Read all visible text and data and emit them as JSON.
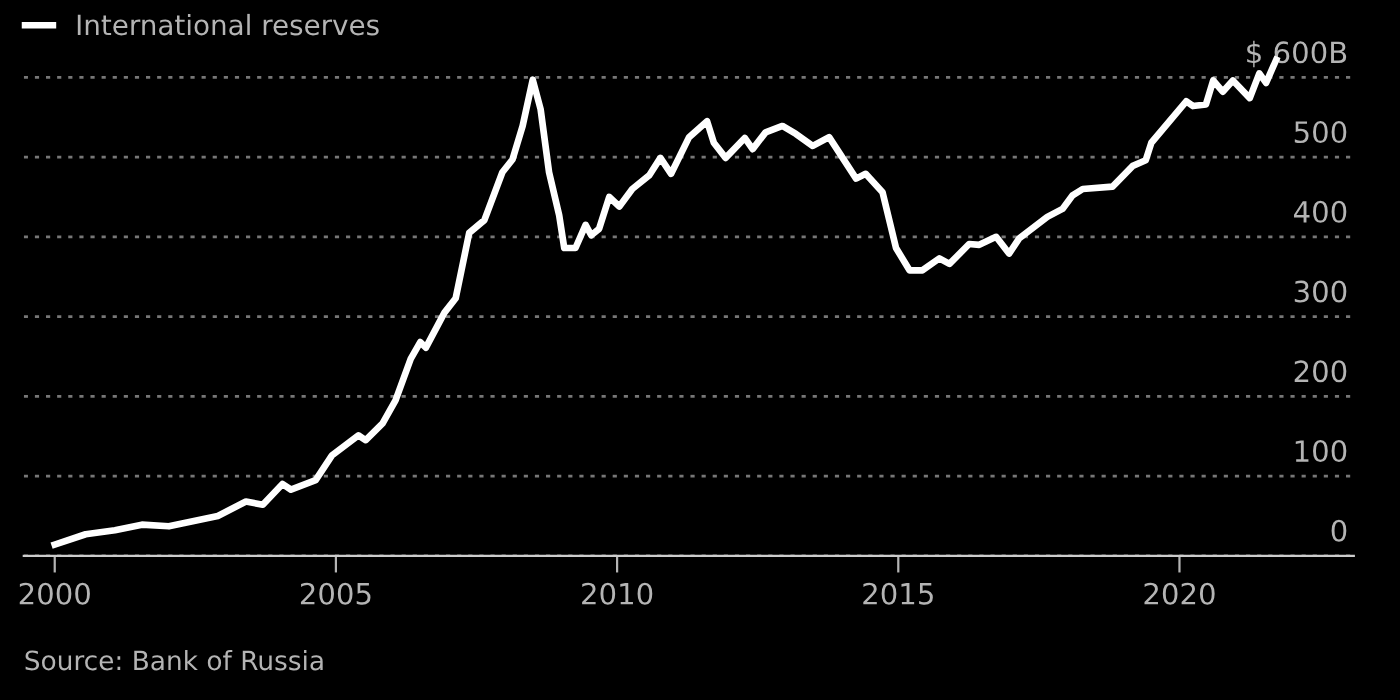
{
  "chart_data": {
    "type": "line",
    "legend": "top left",
    "grid": "y",
    "line_style": "solid",
    "marker": "none",
    "xlim": [
      1999.45,
      2023.1
    ],
    "xticks": [
      2000,
      2005,
      2010,
      2015,
      2020
    ],
    "ylim": [
      0,
      697
    ],
    "yticks": [
      0,
      100,
      200,
      300,
      400,
      500,
      {
        "value": 600,
        "label": "$ 600B"
      }
    ],
    "annotations": [
      "Source: Bank of Russia"
    ],
    "series": [
      {
        "name": "International reserves",
        "color": "#ffffff",
        "x": [
          2000.0,
          2000.55,
          2001.07,
          2001.55,
          2002.03,
          2002.9,
          2003.4,
          2003.7,
          2004.05,
          2004.2,
          2004.64,
          2004.93,
          2005.4,
          2005.53,
          2005.83,
          2006.06,
          2006.33,
          2006.5,
          2006.6,
          2006.93,
          2007.13,
          2007.37,
          2007.64,
          2007.96,
          2008.14,
          2008.32,
          2008.5,
          2008.64,
          2008.79,
          2008.97,
          2009.06,
          2009.26,
          2009.44,
          2009.54,
          2009.68,
          2009.86,
          2010.04,
          2010.27,
          2010.57,
          2010.77,
          2010.96,
          2011.28,
          2011.6,
          2011.72,
          2011.93,
          2012.27,
          2012.41,
          2012.64,
          2012.94,
          2013.18,
          2013.48,
          2013.77,
          2014.25,
          2014.42,
          2014.72,
          2014.96,
          2015.2,
          2015.43,
          2015.73,
          2015.91,
          2016.26,
          2016.44,
          2016.74,
          2016.97,
          2017.15,
          2017.65,
          2017.92,
          2018.1,
          2018.28,
          2018.81,
          2019.17,
          2019.4,
          2019.5,
          2020.12,
          2020.24,
          2020.47,
          2020.6,
          2020.77,
          2020.95,
          2021.25,
          2021.42,
          2021.54,
          2021.72
        ],
        "values": [
          14,
          27,
          32,
          39,
          37,
          50,
          68,
          64,
          90,
          83,
          95,
          126,
          151,
          145,
          166,
          195,
          247,
          268,
          261,
          305,
          323,
          405,
          421,
          481,
          497,
          539,
          597,
          560,
          481,
          427,
          386,
          386,
          415,
          402,
          410,
          450,
          438,
          460,
          477,
          499,
          479,
          525,
          545,
          518,
          499,
          524,
          510,
          531,
          539,
          529,
          514,
          525,
          473,
          479,
          456,
          386,
          358,
          358,
          373,
          366,
          391,
          390,
          400,
          379,
          398,
          425,
          435,
          452,
          460,
          463,
          489,
          496,
          518,
          570,
          564,
          566,
          596,
          582,
          596,
          574,
          605,
          593,
          622
        ]
      }
    ]
  }
}
